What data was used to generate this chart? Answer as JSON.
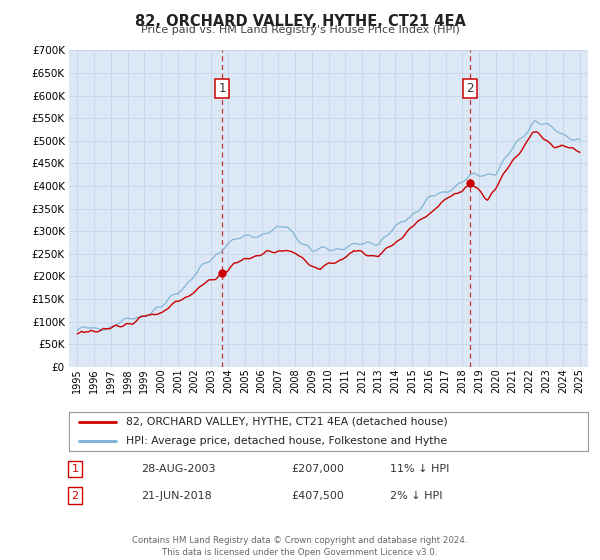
{
  "title": "82, ORCHARD VALLEY, HYTHE, CT21 4EA",
  "subtitle": "Price paid vs. HM Land Registry's House Price Index (HPI)",
  "legend_line1": "82, ORCHARD VALLEY, HYTHE, CT21 4EA (detached house)",
  "legend_line2": "HPI: Average price, detached house, Folkestone and Hythe",
  "marker1_date": "28-AUG-2003",
  "marker1_price": "£207,000",
  "marker1_hpi": "11% ↓ HPI",
  "marker1_year": 2003.65,
  "marker1_value": 207000,
  "marker2_date": "21-JUN-2018",
  "marker2_price": "£407,500",
  "marker2_hpi": "2% ↓ HPI",
  "marker2_year": 2018.47,
  "marker2_value": 407500,
  "footer_line1": "Contains HM Land Registry data © Crown copyright and database right 2024.",
  "footer_line2": "This data is licensed under the Open Government Licence v3.0.",
  "hpi_color": "#7aafd4",
  "price_color": "#cc0000",
  "marker_color": "#cc0000",
  "background_color": "#ffffff",
  "plot_bg_color": "#dce8f5",
  "grid_color": "#c8d8e8",
  "ylim_max": 700000,
  "ylim_min": 0,
  "xlim_min": 1994.5,
  "xlim_max": 2025.5,
  "hpi_seed": 42,
  "price_seed": 123
}
